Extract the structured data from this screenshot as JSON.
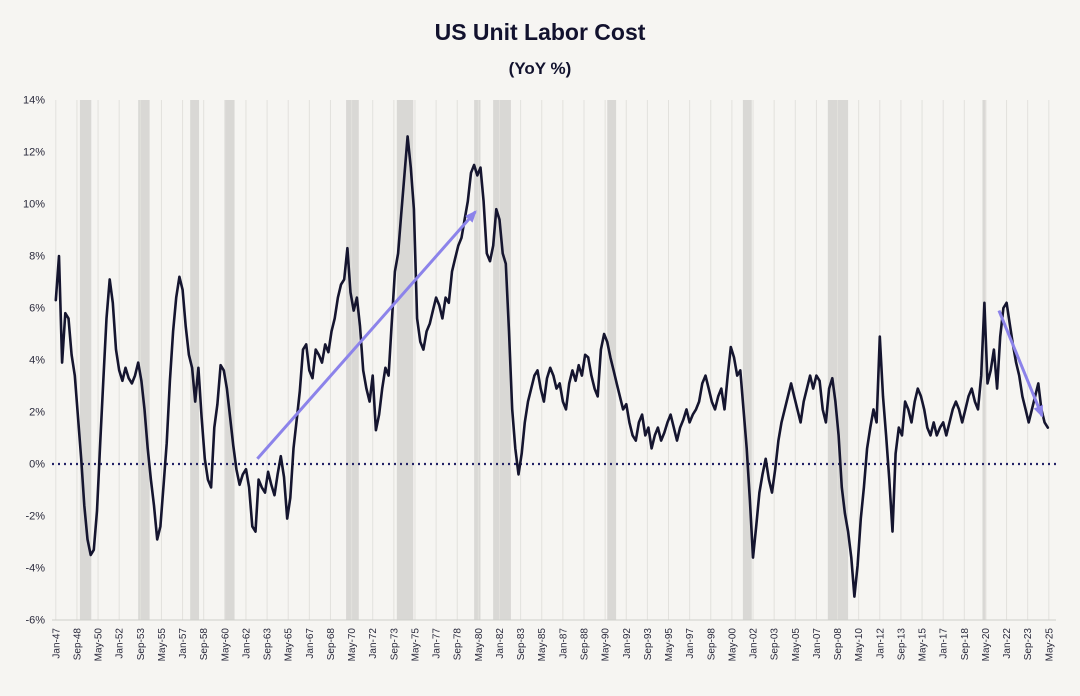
{
  "chart_data": {
    "type": "line",
    "title": "US Unit Labor Cost",
    "subtitle": "(YoY %)",
    "series_name": "US Unit Labor Cost YoY %",
    "x_start_year": 1947,
    "x_step_years": 0.25,
    "xlim": [
      1946.7,
      2025.9
    ],
    "ylim": [
      -6,
      14
    ],
    "grid": "vertical",
    "values": [
      6.3,
      8.0,
      3.9,
      5.8,
      5.6,
      4.2,
      3.4,
      1.8,
      0.2,
      -1.6,
      -2.9,
      -3.5,
      -3.3,
      -1.8,
      0.8,
      3.2,
      5.6,
      7.1,
      6.2,
      4.4,
      3.6,
      3.2,
      3.7,
      3.3,
      3.1,
      3.4,
      3.9,
      3.2,
      2.1,
      0.6,
      -0.6,
      -1.6,
      -2.9,
      -2.4,
      -0.8,
      0.8,
      3.2,
      5.1,
      6.4,
      7.2,
      6.7,
      5.3,
      4.2,
      3.7,
      2.4,
      3.7,
      1.8,
      0.2,
      -0.6,
      -0.9,
      1.4,
      2.3,
      3.8,
      3.6,
      2.9,
      1.8,
      0.7,
      -0.2,
      -0.8,
      -0.4,
      -0.2,
      -0.9,
      -2.4,
      -2.6,
      -0.6,
      -0.9,
      -1.1,
      -0.3,
      -0.8,
      -1.2,
      -0.4,
      0.3,
      -0.5,
      -2.1,
      -1.3,
      0.6,
      1.7,
      2.8,
      4.4,
      4.6,
      3.6,
      3.3,
      4.4,
      4.2,
      3.9,
      4.6,
      4.3,
      5.1,
      5.6,
      6.4,
      6.9,
      7.1,
      8.3,
      6.6,
      5.9,
      6.4,
      5.3,
      3.6,
      2.9,
      2.4,
      3.4,
      1.3,
      1.9,
      2.9,
      3.7,
      3.4,
      5.4,
      7.4,
      8.1,
      9.6,
      11.1,
      12.6,
      11.4,
      9.8,
      5.6,
      4.7,
      4.4,
      5.1,
      5.4,
      5.9,
      6.4,
      6.1,
      5.6,
      6.4,
      6.2,
      7.4,
      7.9,
      8.4,
      8.7,
      9.4,
      10.1,
      11.2,
      11.5,
      11.1,
      11.4,
      10.1,
      8.1,
      7.8,
      8.4,
      9.8,
      9.4,
      8.1,
      7.7,
      5.1,
      2.1,
      0.6,
      -0.4,
      0.4,
      1.6,
      2.4,
      2.9,
      3.4,
      3.6,
      2.9,
      2.4,
      3.3,
      3.7,
      3.4,
      2.9,
      3.1,
      2.4,
      2.1,
      3.1,
      3.6,
      3.2,
      3.8,
      3.4,
      4.2,
      4.1,
      3.4,
      2.9,
      2.6,
      4.4,
      5.0,
      4.7,
      4.1,
      3.6,
      3.1,
      2.6,
      2.1,
      2.3,
      1.6,
      1.1,
      0.9,
      1.6,
      1.9,
      1.1,
      1.4,
      0.6,
      1.1,
      1.4,
      0.9,
      1.2,
      1.6,
      1.9,
      1.4,
      0.9,
      1.4,
      1.7,
      2.1,
      1.6,
      1.9,
      2.1,
      2.4,
      3.1,
      3.4,
      2.9,
      2.4,
      2.1,
      2.6,
      2.9,
      2.1,
      3.4,
      4.5,
      4.1,
      3.4,
      3.6,
      2.1,
      0.6,
      -1.4,
      -3.6,
      -2.4,
      -1.1,
      -0.4,
      0.2,
      -0.6,
      -1.1,
      -0.2,
      0.9,
      1.6,
      2.1,
      2.6,
      3.1,
      2.6,
      2.1,
      1.6,
      2.4,
      2.9,
      3.4,
      2.9,
      3.4,
      3.2,
      2.1,
      1.6,
      2.9,
      3.3,
      2.4,
      1.1,
      -0.9,
      -1.9,
      -2.6,
      -3.6,
      -5.1,
      -3.9,
      -2.1,
      -0.9,
      0.6,
      1.4,
      2.1,
      1.6,
      4.9,
      2.6,
      1.1,
      -0.6,
      -2.6,
      0.4,
      1.4,
      1.1,
      2.4,
      2.1,
      1.6,
      2.4,
      2.9,
      2.6,
      2.1,
      1.4,
      1.1,
      1.6,
      1.1,
      1.4,
      1.6,
      1.1,
      1.6,
      2.1,
      2.4,
      2.1,
      1.6,
      2.1,
      2.6,
      2.9,
      2.4,
      2.1,
      3.4,
      6.2,
      3.1,
      3.6,
      4.4,
      2.9,
      4.9,
      6.0,
      6.2,
      5.4,
      4.6,
      3.9,
      3.4,
      2.6,
      2.1,
      1.6,
      2.1,
      2.6,
      3.1,
      2.1,
      1.6,
      1.4
    ],
    "y_ticks": [
      {
        "value": 14,
        "label": "14%"
      },
      {
        "value": 12,
        "label": "12%"
      },
      {
        "value": 10,
        "label": "10%"
      },
      {
        "value": 8,
        "label": "8%"
      },
      {
        "value": 6,
        "label": "6%"
      },
      {
        "value": 4,
        "label": "4%"
      },
      {
        "value": 2,
        "label": "2%"
      },
      {
        "value": 0,
        "label": "0%"
      },
      {
        "value": -2,
        "label": "-2%"
      },
      {
        "value": -4,
        "label": "-4%"
      },
      {
        "value": -6,
        "label": "-6%"
      }
    ],
    "x_tick_start_year": 1947.0,
    "x_tick_step_months": 20,
    "x_tick_labels": [
      "Jan-47",
      "Sep-48",
      "May-50",
      "Jan-52",
      "Sep-53",
      "May-55",
      "Jan-57",
      "Sep-58",
      "May-60",
      "Jan-62",
      "Sep-63",
      "May-65",
      "Jan-67",
      "Sep-68",
      "May-70",
      "Jan-72",
      "Sep-73",
      "May-75",
      "Jan-77",
      "Sep-78",
      "May-80",
      "Jan-82",
      "Sep-83",
      "May-85",
      "Jan-87",
      "Sep-88",
      "May-90",
      "Jan-92",
      "Sep-93",
      "May-95",
      "Jan-97",
      "Sep-98",
      "May-00",
      "Jan-02",
      "Sep-03",
      "May-05",
      "Jan-07",
      "Sep-08",
      "May-10",
      "Jan-12",
      "Sep-13",
      "May-15",
      "Jan-17",
      "Sep-18",
      "May-20",
      "Jan-22",
      "Sep-23",
      "May-25"
    ],
    "zero_line": {
      "value": 0,
      "style": "dotted"
    },
    "recession_bands": [
      {
        "start": 1948.9,
        "end": 1949.8
      },
      {
        "start": 1953.5,
        "end": 1954.4
      },
      {
        "start": 1957.6,
        "end": 1958.3
      },
      {
        "start": 1960.3,
        "end": 1961.1
      },
      {
        "start": 1969.9,
        "end": 1970.9
      },
      {
        "start": 1973.9,
        "end": 1975.2
      },
      {
        "start": 1980.0,
        "end": 1980.5
      },
      {
        "start": 1981.5,
        "end": 1982.9
      },
      {
        "start": 1990.5,
        "end": 1991.2
      },
      {
        "start": 2001.2,
        "end": 2001.9
      },
      {
        "start": 2007.9,
        "end": 2009.5
      },
      {
        "start": 2020.1,
        "end": 2020.4
      }
    ],
    "annotations": [
      {
        "name": "uptrend-arrow",
        "type": "arrow",
        "from_x": 1962.9,
        "from_y": 0.2,
        "to_x": 1980.1,
        "to_y": 9.7
      },
      {
        "name": "downtrend-arrow",
        "type": "arrow",
        "from_x": 2021.4,
        "from_y": 5.9,
        "to_x": 2024.8,
        "to_y": 1.85
      }
    ],
    "colors": {
      "background": "#f6f5f2",
      "line": "#15152f",
      "zero_line": "#222266",
      "recession_band": "#d9d8d5",
      "gridline": "#e2e1dd",
      "axis_line": "#cfcfcb",
      "arrow": "#8c83ea",
      "text": "#2a2a3c",
      "title": "#12122e"
    }
  }
}
